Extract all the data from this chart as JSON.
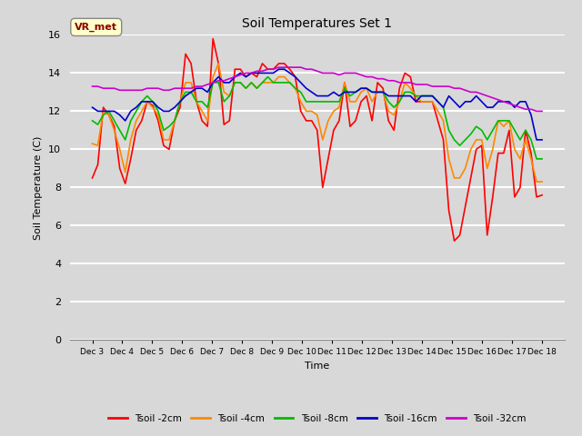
{
  "title": "Soil Temperatures Set 1",
  "xlabel": "Time",
  "ylabel": "Soil Temperature (C)",
  "ylim": [
    0,
    16
  ],
  "yticks": [
    0,
    2,
    4,
    6,
    8,
    10,
    12,
    14,
    16
  ],
  "x_labels": [
    "Dec 3",
    "Dec 4",
    "Dec 5",
    "Dec 6",
    "Dec 7",
    "Dec 8",
    "Dec 9",
    "Dec 10",
    "Dec 11",
    "Dec 12",
    "Dec 13",
    "Dec 14",
    "Dec 15",
    "Dec 16",
    "Dec 17",
    "Dec 18"
  ],
  "fig_bg_color": "#d8d8d8",
  "plot_bg_color": "#d8d8d8",
  "grid_color": "#ffffff",
  "annotation_text": "VR_met",
  "annotation_bg": "#ffffcc",
  "annotation_border": "#8B0000",
  "series": [
    {
      "label": "Tsoil -2cm",
      "color": "#ff0000",
      "lw": 1.2
    },
    {
      "label": "Tsoil -4cm",
      "color": "#ff8800",
      "lw": 1.2
    },
    {
      "label": "Tsoil -8cm",
      "color": "#00bb00",
      "lw": 1.2
    },
    {
      "label": "Tsoil -16cm",
      "color": "#0000cc",
      "lw": 1.2
    },
    {
      "label": "Tsoil -32cm",
      "color": "#cc00cc",
      "lw": 1.2
    }
  ],
  "tsoil_2cm": [
    8.5,
    9.2,
    12.2,
    11.8,
    11.2,
    9.0,
    8.2,
    9.5,
    11.0,
    11.5,
    12.5,
    12.3,
    11.5,
    10.2,
    10.0,
    11.5,
    12.2,
    15.0,
    14.5,
    12.5,
    11.5,
    11.2,
    15.8,
    14.5,
    11.3,
    11.5,
    14.2,
    14.2,
    13.8,
    14.0,
    13.8,
    14.5,
    14.2,
    14.2,
    14.5,
    14.5,
    14.2,
    13.8,
    12.0,
    11.5,
    11.5,
    11.0,
    8.0,
    9.5,
    11.0,
    11.5,
    13.5,
    11.2,
    11.5,
    12.5,
    12.8,
    11.5,
    13.5,
    13.2,
    11.5,
    11.0,
    13.2,
    14.0,
    13.8,
    12.5,
    12.5,
    12.5,
    12.5,
    11.5,
    10.5,
    6.8,
    5.2,
    5.5,
    7.0,
    8.5,
    10.0,
    10.2,
    5.5,
    7.5,
    9.8,
    9.8,
    11.0,
    7.5,
    8.0,
    11.0,
    9.8,
    7.5,
    7.6
  ],
  "tsoil_4cm": [
    10.3,
    10.2,
    12.0,
    11.8,
    11.0,
    10.0,
    8.8,
    10.5,
    11.5,
    12.0,
    12.5,
    12.2,
    11.8,
    10.5,
    10.5,
    11.5,
    12.5,
    13.5,
    13.5,
    12.5,
    12.0,
    11.5,
    13.8,
    14.5,
    13.0,
    12.8,
    13.5,
    13.5,
    13.2,
    13.5,
    13.2,
    13.5,
    13.5,
    13.5,
    13.8,
    13.8,
    13.5,
    13.2,
    12.5,
    12.0,
    12.0,
    11.8,
    10.5,
    11.5,
    12.0,
    12.2,
    13.5,
    12.5,
    12.5,
    13.0,
    13.2,
    12.5,
    13.0,
    13.0,
    12.0,
    11.8,
    12.5,
    13.5,
    13.2,
    12.8,
    12.5,
    12.5,
    12.5,
    12.0,
    11.5,
    9.5,
    8.5,
    8.5,
    9.0,
    10.0,
    10.5,
    10.5,
    9.0,
    10.0,
    11.5,
    11.2,
    11.5,
    10.0,
    9.5,
    10.5,
    9.5,
    8.3,
    8.3
  ],
  "tsoil_8cm": [
    11.5,
    11.3,
    11.8,
    12.0,
    11.5,
    11.0,
    10.5,
    11.5,
    12.0,
    12.5,
    12.8,
    12.5,
    12.0,
    11.0,
    11.2,
    11.5,
    12.5,
    13.0,
    13.0,
    12.5,
    12.5,
    12.2,
    13.5,
    13.5,
    12.5,
    12.8,
    13.5,
    13.5,
    13.2,
    13.5,
    13.2,
    13.5,
    13.8,
    13.5,
    13.5,
    13.5,
    13.5,
    13.2,
    13.0,
    12.5,
    12.5,
    12.5,
    12.5,
    12.5,
    12.5,
    12.5,
    13.2,
    12.8,
    13.0,
    13.2,
    13.2,
    13.0,
    13.0,
    13.0,
    12.5,
    12.2,
    12.5,
    13.0,
    13.0,
    12.8,
    12.8,
    12.8,
    12.8,
    12.5,
    12.2,
    11.0,
    10.5,
    10.2,
    10.5,
    10.8,
    11.2,
    11.0,
    10.5,
    11.0,
    11.5,
    11.5,
    11.5,
    11.0,
    10.5,
    11.0,
    10.5,
    9.5,
    9.5
  ],
  "tsoil_16cm": [
    12.2,
    12.0,
    12.0,
    12.0,
    12.0,
    11.8,
    11.5,
    12.0,
    12.2,
    12.5,
    12.5,
    12.5,
    12.2,
    12.0,
    12.0,
    12.2,
    12.5,
    12.8,
    13.0,
    13.2,
    13.2,
    13.0,
    13.5,
    13.8,
    13.5,
    13.5,
    13.8,
    14.0,
    13.8,
    14.0,
    14.0,
    14.0,
    14.0,
    14.0,
    14.2,
    14.2,
    14.0,
    13.8,
    13.5,
    13.2,
    13.0,
    12.8,
    12.8,
    12.8,
    13.0,
    12.8,
    13.0,
    13.0,
    13.0,
    13.2,
    13.2,
    13.0,
    13.0,
    13.0,
    12.8,
    12.8,
    12.8,
    12.8,
    12.8,
    12.5,
    12.8,
    12.8,
    12.8,
    12.5,
    12.2,
    12.8,
    12.5,
    12.2,
    12.5,
    12.5,
    12.8,
    12.5,
    12.2,
    12.2,
    12.5,
    12.5,
    12.5,
    12.2,
    12.5,
    12.5,
    11.8,
    10.5,
    10.5
  ],
  "tsoil_32cm": [
    13.3,
    13.3,
    13.2,
    13.2,
    13.2,
    13.1,
    13.1,
    13.1,
    13.1,
    13.1,
    13.2,
    13.2,
    13.2,
    13.1,
    13.1,
    13.2,
    13.2,
    13.2,
    13.2,
    13.3,
    13.3,
    13.4,
    13.5,
    13.6,
    13.6,
    13.7,
    13.8,
    13.9,
    14.0,
    14.0,
    14.1,
    14.1,
    14.2,
    14.2,
    14.3,
    14.3,
    14.3,
    14.3,
    14.3,
    14.2,
    14.2,
    14.1,
    14.0,
    14.0,
    14.0,
    13.9,
    14.0,
    14.0,
    14.0,
    13.9,
    13.8,
    13.8,
    13.7,
    13.7,
    13.6,
    13.6,
    13.5,
    13.5,
    13.5,
    13.4,
    13.4,
    13.4,
    13.3,
    13.3,
    13.3,
    13.3,
    13.2,
    13.2,
    13.1,
    13.0,
    13.0,
    12.9,
    12.8,
    12.7,
    12.6,
    12.5,
    12.4,
    12.3,
    12.2,
    12.1,
    12.1,
    12.0,
    12.0
  ]
}
